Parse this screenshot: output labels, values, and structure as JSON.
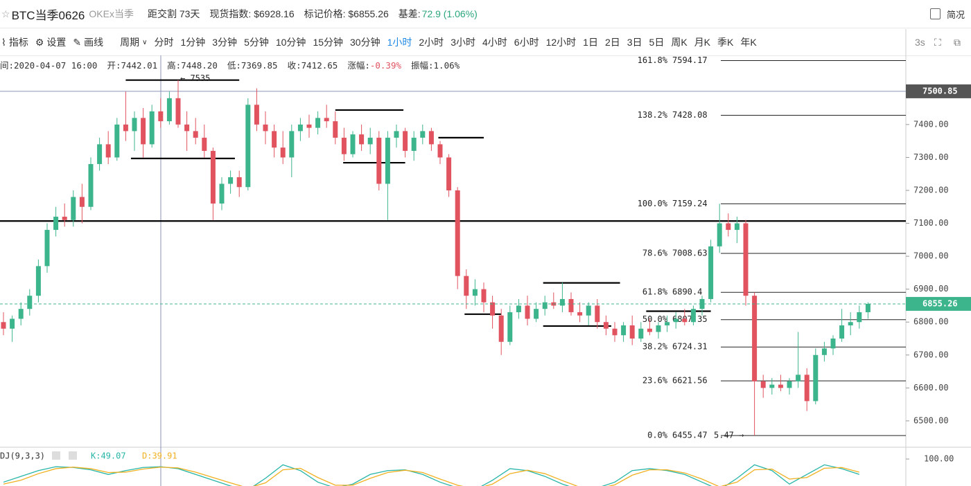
{
  "header": {
    "title": "BTC当季0626",
    "subtitle": "OKEx当季",
    "expiry": "距交割 73天",
    "index_price": "现货指数: $6928.16",
    "mark_price": "标记价格: $6855.26",
    "basis_label": "基差:",
    "basis": "72.9 (1.06%)",
    "overview": "简况"
  },
  "toolbar": {
    "indicators": "指标",
    "settings": "设置",
    "drawing": "画线",
    "period": "周期",
    "periods": [
      "分时",
      "1分钟",
      "3分钟",
      "5分钟",
      "10分钟",
      "15分钟",
      "30分钟",
      "1小时",
      "2小时",
      "3小时",
      "4小时",
      "6小时",
      "12小时",
      "1日",
      "2日",
      "3日",
      "5日",
      "周K",
      "月K",
      "季K",
      "年K"
    ],
    "active_period": 7,
    "refresh": "3s"
  },
  "info": {
    "time": "间:2020-04-07 16:00",
    "open": "开:7442.01",
    "high": "高:7448.20",
    "low": "低:7369.85",
    "close": "收:7412.65",
    "change_label": "涨幅:",
    "change": "-0.39%",
    "amplitude": "振幅:1.06%"
  },
  "chart_data": {
    "type": "candlestick",
    "ohlc": [
      [
        6800,
        6830,
        6760,
        6780
      ],
      [
        6780,
        6820,
        6740,
        6810
      ],
      [
        6810,
        6860,
        6790,
        6840
      ],
      [
        6840,
        6900,
        6820,
        6880
      ],
      [
        6880,
        6990,
        6860,
        6970
      ],
      [
        6970,
        7100,
        6950,
        7080
      ],
      [
        7080,
        7150,
        7060,
        7120
      ],
      [
        7120,
        7160,
        7090,
        7110
      ],
      [
        7110,
        7200,
        7090,
        7180
      ],
      [
        7180,
        7220,
        7100,
        7150
      ],
      [
        7150,
        7300,
        7140,
        7280
      ],
      [
        7280,
        7360,
        7260,
        7340
      ],
      [
        7340,
        7380,
        7280,
        7300
      ],
      [
        7300,
        7420,
        7290,
        7400
      ],
      [
        7400,
        7500,
        7350,
        7380
      ],
      [
        7380,
        7440,
        7320,
        7420
      ],
      [
        7420,
        7450,
        7300,
        7340
      ],
      [
        7340,
        7460,
        7330,
        7440
      ],
      [
        7440,
        7480,
        7390,
        7410
      ],
      [
        7410,
        7500,
        7400,
        7480
      ],
      [
        7480,
        7535,
        7390,
        7400
      ],
      [
        7400,
        7440,
        7320,
        7380
      ],
      [
        7380,
        7420,
        7340,
        7360
      ],
      [
        7360,
        7400,
        7300,
        7320
      ],
      [
        7320,
        7330,
        7110,
        7160
      ],
      [
        7160,
        7240,
        7140,
        7220
      ],
      [
        7220,
        7260,
        7190,
        7240
      ],
      [
        7240,
        7260,
        7180,
        7210
      ],
      [
        7210,
        7480,
        7200,
        7460
      ],
      [
        7460,
        7510,
        7380,
        7400
      ],
      [
        7400,
        7440,
        7340,
        7380
      ],
      [
        7380,
        7400,
        7300,
        7330
      ],
      [
        7330,
        7380,
        7280,
        7300
      ],
      [
        7300,
        7400,
        7240,
        7380
      ],
      [
        7380,
        7420,
        7350,
        7400
      ],
      [
        7400,
        7430,
        7360,
        7390
      ],
      [
        7390,
        7440,
        7370,
        7420
      ],
      [
        7420,
        7460,
        7390,
        7410
      ],
      [
        7410,
        7440,
        7340,
        7360
      ],
      [
        7360,
        7390,
        7290,
        7310
      ],
      [
        7310,
        7380,
        7300,
        7370
      ],
      [
        7370,
        7400,
        7320,
        7340
      ],
      [
        7340,
        7390,
        7310,
        7360
      ],
      [
        7360,
        7380,
        7200,
        7220
      ],
      [
        7220,
        7380,
        7110,
        7360
      ],
      [
        7360,
        7400,
        7330,
        7380
      ],
      [
        7380,
        7390,
        7300,
        7320
      ],
      [
        7320,
        7380,
        7290,
        7360
      ],
      [
        7360,
        7400,
        7340,
        7380
      ],
      [
        7380,
        7390,
        7320,
        7340
      ],
      [
        7340,
        7350,
        7280,
        7300
      ],
      [
        7300,
        7310,
        7180,
        7200
      ],
      [
        7200,
        7210,
        6900,
        6940
      ],
      [
        6940,
        6960,
        6840,
        6880
      ],
      [
        6880,
        6930,
        6850,
        6900
      ],
      [
        6900,
        6920,
        6830,
        6860
      ],
      [
        6860,
        6880,
        6780,
        6820
      ],
      [
        6820,
        6840,
        6700,
        6740
      ],
      [
        6740,
        6850,
        6730,
        6830
      ],
      [
        6830,
        6870,
        6810,
        6850
      ],
      [
        6850,
        6880,
        6790,
        6810
      ],
      [
        6810,
        6860,
        6800,
        6840
      ],
      [
        6840,
        6880,
        6820,
        6860
      ],
      [
        6860,
        6890,
        6840,
        6850
      ],
      [
        6850,
        6920,
        6830,
        6870
      ],
      [
        6870,
        6890,
        6820,
        6830
      ],
      [
        6830,
        6860,
        6800,
        6820
      ],
      [
        6820,
        6860,
        6790,
        6850
      ],
      [
        6850,
        6870,
        6780,
        6800
      ],
      [
        6800,
        6820,
        6760,
        6780
      ],
      [
        6780,
        6800,
        6740,
        6760
      ],
      [
        6760,
        6800,
        6740,
        6790
      ],
      [
        6790,
        6820,
        6730,
        6750
      ],
      [
        6750,
        6800,
        6740,
        6780
      ],
      [
        6780,
        6810,
        6760,
        6770
      ],
      [
        6770,
        6800,
        6750,
        6790
      ],
      [
        6790,
        6820,
        6770,
        6800
      ],
      [
        6800,
        6830,
        6780,
        6810
      ],
      [
        6810,
        6840,
        6790,
        6800
      ],
      [
        6800,
        6850,
        6790,
        6840
      ],
      [
        6840,
        6880,
        6820,
        6870
      ],
      [
        6870,
        7050,
        6860,
        7030
      ],
      [
        7030,
        7159.24,
        7010,
        7100
      ],
      [
        7100,
        7130,
        7060,
        7080
      ],
      [
        7080,
        7120,
        7040,
        7100
      ],
      [
        7100,
        7110,
        6850,
        6880
      ],
      [
        6880,
        6890,
        6455.47,
        6620
      ],
      [
        6620,
        6640,
        6570,
        6600
      ],
      [
        6600,
        6630,
        6580,
        6610
      ],
      [
        6610,
        6640,
        6590,
        6600
      ],
      [
        6600,
        6630,
        6580,
        6620
      ],
      [
        6620,
        6770,
        6600,
        6640
      ],
      [
        6640,
        6660,
        6530,
        6560
      ],
      [
        6560,
        6720,
        6550,
        6700
      ],
      [
        6700,
        6740,
        6680,
        6720
      ],
      [
        6720,
        6760,
        6700,
        6750
      ],
      [
        6750,
        6840,
        6740,
        6790
      ],
      [
        6790,
        6830,
        6760,
        6800
      ],
      [
        6800,
        6850,
        6780,
        6830
      ],
      [
        6830,
        6860,
        6810,
        6855.26
      ]
    ],
    "colors": {
      "up": "#3cb48c",
      "down": "#e0535f"
    },
    "ylim": [
      6422,
      7610
    ],
    "yticks": [
      {
        "value": 6500,
        "label": "6500.00"
      },
      {
        "value": 6600,
        "label": "6600.00"
      },
      {
        "value": 6700,
        "label": "6700.00"
      },
      {
        "value": 6800,
        "label": "6800.00"
      },
      {
        "value": 6900,
        "label": "6900.00"
      },
      {
        "value": 7000,
        "label": "7000.00"
      },
      {
        "value": 7100,
        "label": "7100.00"
      },
      {
        "value": 7200,
        "label": "7200.00"
      },
      {
        "value": 7300,
        "label": "7300.00"
      },
      {
        "value": 7400,
        "label": "7400.00"
      }
    ],
    "last_price": 6855.26,
    "crosshair_price": 7500.85,
    "fib_levels": [
      {
        "ratio": "161.8%",
        "value": 7594.17
      },
      {
        "ratio": "138.2%",
        "value": 7428.08
      },
      {
        "ratio": "100.0%",
        "value": 7159.24
      },
      {
        "ratio": "78.6%",
        "value": 7008.63
      },
      {
        "ratio": "61.8%",
        "value": 6890.4
      },
      {
        "ratio": "50.0%",
        "value": 6807.35
      },
      {
        "ratio": "38.2%",
        "value": 6724.31
      },
      {
        "ratio": "23.6%",
        "value": 6621.56
      },
      {
        "ratio": "0.0%",
        "value": 6455.47
      }
    ],
    "drawn_lines": [
      7535,
      7297,
      7444,
      7284,
      7360,
      7107,
      6919,
      6824,
      6788,
      6833
    ],
    "annotations": [
      "← 7535",
      "5.47 →"
    ],
    "indicator": {
      "name": "DJ(9,3,3)",
      "k_label": "K:49.07",
      "d_label": "D:39.91",
      "ylim": [
        30,
        127
      ],
      "yticks": [
        {
          "value": 100,
          "label": "100.00"
        }
      ],
      "series": [
        {
          "color": "#26b5a8",
          "values": [
            40,
            55,
            70,
            80,
            78,
            72,
            60,
            70,
            78,
            80,
            75,
            60,
            45,
            30,
            20,
            50,
            85,
            70,
            40,
            25,
            35,
            60,
            70,
            72,
            60,
            40,
            25,
            20,
            45,
            75,
            70,
            55,
            35,
            20,
            25,
            40,
            70,
            75,
            70,
            60,
            40,
            20,
            50,
            85,
            70,
            35,
            60,
            85,
            75,
            60
          ]
        },
        {
          "color": "#f0b020",
          "values": [
            35,
            45,
            62,
            75,
            79,
            75,
            65,
            66,
            74,
            79,
            77,
            66,
            52,
            38,
            25,
            38,
            72,
            76,
            52,
            32,
            32,
            50,
            65,
            71,
            65,
            48,
            32,
            22,
            35,
            62,
            71,
            62,
            44,
            27,
            23,
            33,
            58,
            72,
            72,
            64,
            48,
            28,
            40,
            72,
            74,
            48,
            52,
            76,
            78,
            66
          ]
        }
      ]
    }
  }
}
